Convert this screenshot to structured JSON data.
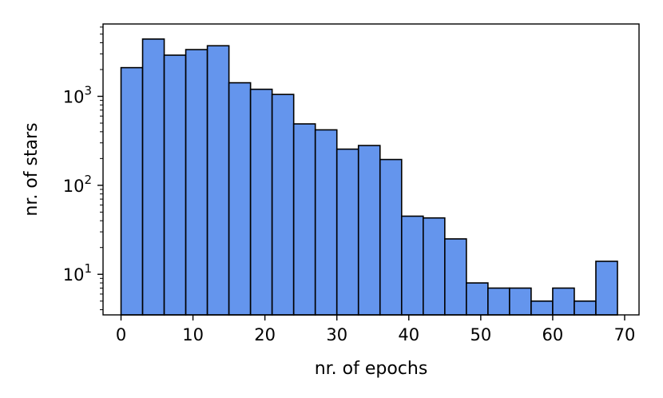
{
  "chart_data": {
    "type": "bar",
    "subtype": "histogram",
    "title": "",
    "xlabel": "nr. of epochs",
    "ylabel": "nr. of stars",
    "yscale": "log",
    "xlim": [
      -2.5,
      72
    ],
    "ylim": [
      3.5,
      6500
    ],
    "grid": false,
    "bar_color": "#6495ED",
    "edge_color": "#000000",
    "bin_edges": [
      0,
      3,
      6,
      9,
      12,
      15,
      18,
      21,
      24,
      27,
      30,
      33,
      36,
      39,
      42,
      45,
      48,
      51,
      54,
      57,
      60,
      63,
      66,
      69
    ],
    "values": [
      2100,
      4400,
      2900,
      3350,
      3700,
      1420,
      1200,
      1050,
      490,
      420,
      255,
      280,
      195,
      45,
      43,
      25,
      8,
      7,
      7,
      5,
      7,
      5,
      14
    ],
    "x_ticks": [
      {
        "value": 0,
        "label": "0"
      },
      {
        "value": 10,
        "label": "10"
      },
      {
        "value": 20,
        "label": "20"
      },
      {
        "value": 30,
        "label": "30"
      },
      {
        "value": 40,
        "label": "40"
      },
      {
        "value": 50,
        "label": "50"
      },
      {
        "value": 60,
        "label": "60"
      },
      {
        "value": 70,
        "label": "70"
      }
    ],
    "y_ticks": [
      {
        "value": 10,
        "base": "10",
        "exp": "1"
      },
      {
        "value": 100,
        "base": "10",
        "exp": "2"
      },
      {
        "value": 1000,
        "base": "10",
        "exp": "3"
      }
    ]
  }
}
